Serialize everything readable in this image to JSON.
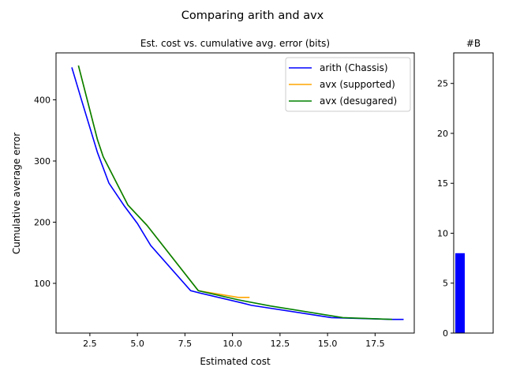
{
  "chart_data": [
    {
      "type": "line",
      "suptitle": "Comparing arith and avx",
      "title": "Est. cost vs. cumulative avg. error (bits)",
      "xlabel": "Estimated cost",
      "ylabel": "Cumulative average error",
      "xlim": [
        0.72,
        19.56
      ],
      "ylim": [
        18.7,
        476.8
      ],
      "xticks": [
        2.5,
        5.0,
        7.5,
        10.0,
        12.5,
        15.0,
        17.5
      ],
      "xtick_labels": [
        "2.5",
        "5.0",
        "7.5",
        "10.0",
        "12.5",
        "15.0",
        "17.5"
      ],
      "yticks": [
        100,
        200,
        300,
        400
      ],
      "ytick_labels": [
        "100",
        "200",
        "300",
        "400"
      ],
      "grid": false,
      "legend_position": "top-right",
      "series": [
        {
          "name": "arith (Chassis)",
          "color": "#0000ff",
          "x": [
            1.55,
            2.05,
            2.9,
            3.5,
            4.3,
            5.0,
            5.7,
            7.8,
            8.3,
            10.5,
            11.0,
            15.2,
            18.4,
            19.0
          ],
          "y": [
            453,
            401,
            314,
            264,
            227,
            198,
            162,
            88,
            84,
            68,
            64,
            44,
            41,
            41
          ]
        },
        {
          "name": "avx (supported)",
          "color": "#ffa500",
          "x": [
            1.9,
            2.9,
            3.2,
            4.5,
            5.5,
            8.2,
            10.3,
            10.9
          ],
          "y": [
            456,
            335,
            307,
            228,
            195,
            88,
            77,
            77
          ]
        },
        {
          "name": "avx (desugared)",
          "color": "#008000",
          "x": [
            1.9,
            2.9,
            3.2,
            4.5,
            5.5,
            8.2,
            10.3,
            12.0,
            15.8,
            18.4
          ],
          "y": [
            456,
            335,
            307,
            228,
            195,
            88,
            73,
            63,
            44,
            41
          ]
        }
      ]
    },
    {
      "type": "bar",
      "title": "#B",
      "categories": [
        ""
      ],
      "values": [
        8
      ],
      "color": "#0000ff",
      "ylim": [
        0,
        28.06
      ],
      "yticks": [
        0,
        5,
        10,
        15,
        20,
        25
      ],
      "ytick_labels": [
        "0",
        "5",
        "10",
        "15",
        "20",
        "25"
      ]
    }
  ]
}
